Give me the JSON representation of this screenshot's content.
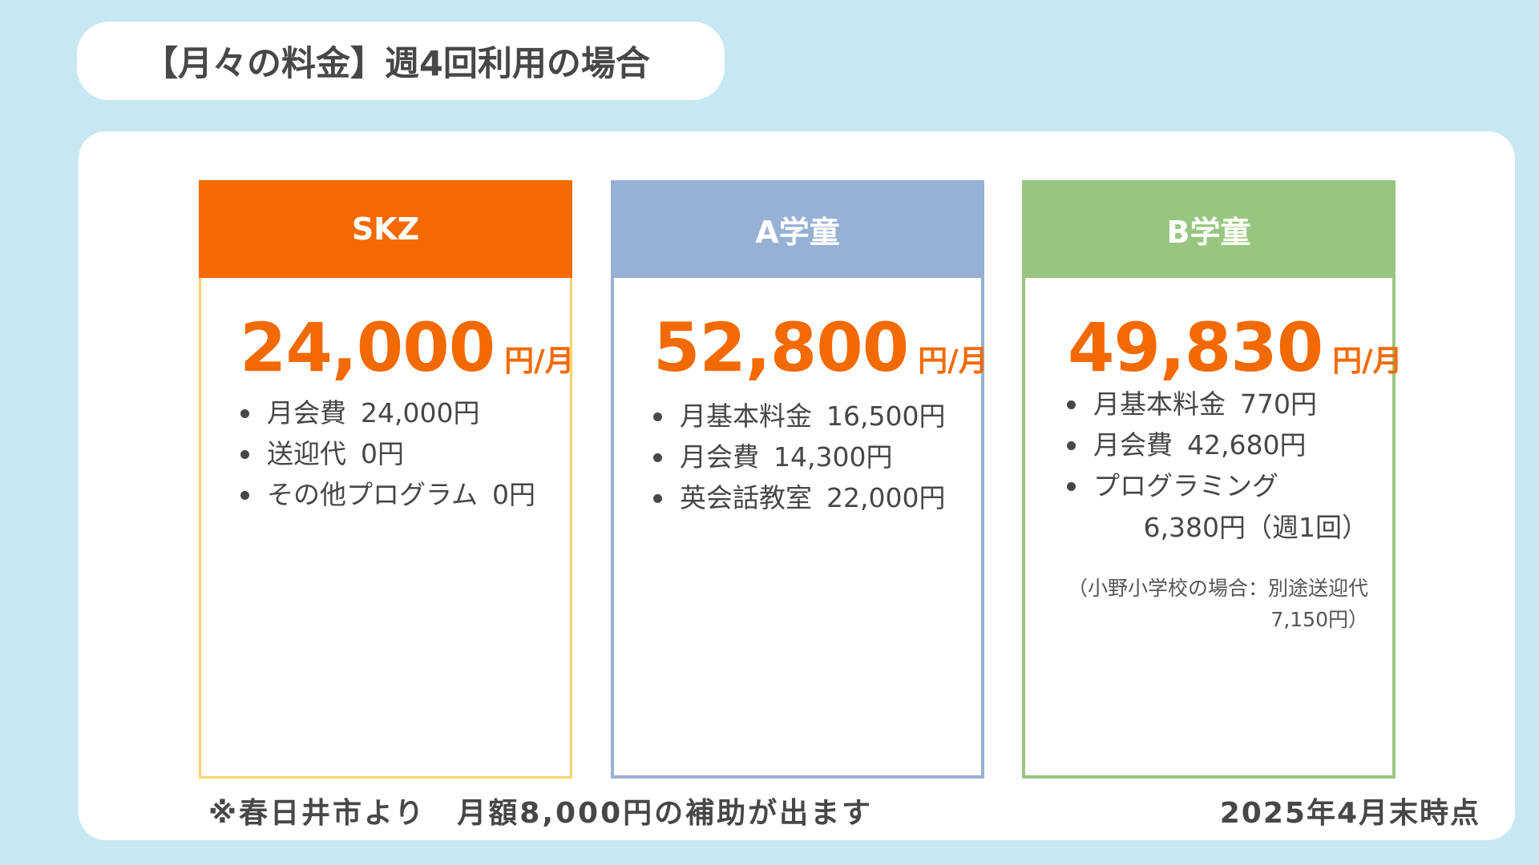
{
  "title": "【月々の料金】週4回利用の場合",
  "cards": [
    {
      "name": "SKZ",
      "price": "24,000",
      "unit": "円/月",
      "items": [
        {
          "label": "月会費",
          "value": "24,000円"
        },
        {
          "label": "送迎代",
          "value": "0円"
        },
        {
          "label": "その他プログラム",
          "value": "0円"
        }
      ]
    },
    {
      "name": "A学童",
      "price": "52,800",
      "unit": "円/月",
      "items": [
        {
          "label": "月基本料金",
          "value": "16,500円"
        },
        {
          "label": "月会費",
          "value": "14,300円"
        },
        {
          "label": "英会話教室",
          "value": "22,000円"
        }
      ]
    },
    {
      "name": "B学童",
      "price": "49,830",
      "unit": "円/月",
      "items": [
        {
          "label": "月基本料金",
          "value": "770円"
        },
        {
          "label": "月会費",
          "value": "42,680円"
        },
        {
          "label": "プログラミング",
          "value": ""
        }
      ],
      "programming_detail": "6,380円（週1回）",
      "note_line1": "（小野小学校の場合：別途送迎代",
      "note_line2": "7,150円）"
    }
  ],
  "footer": {
    "subsidy": "※春日井市より　月額8,000円の補助が出ます",
    "as_of": "2025年4月末時点"
  },
  "colors": {
    "background": "#c7e8f2",
    "accent_orange": "#f36a03",
    "skz_border": "#f7d46b",
    "a_blue": "#97b0d6",
    "b_green": "#98c680",
    "text": "#474747"
  }
}
